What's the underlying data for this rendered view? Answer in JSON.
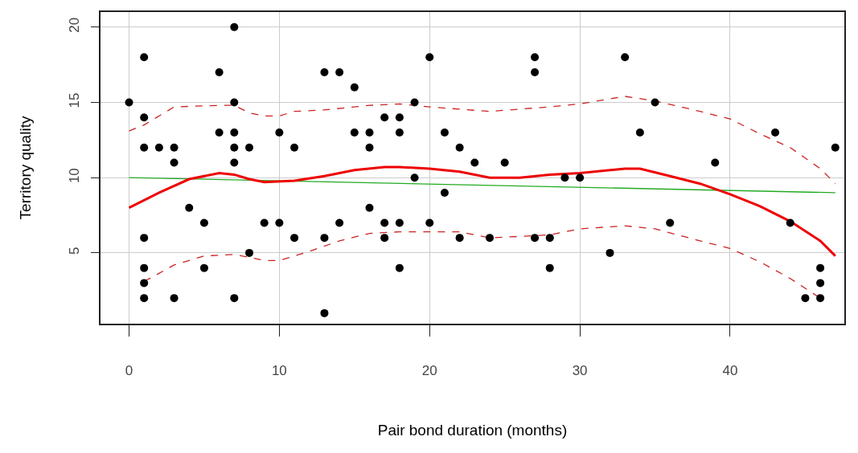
{
  "chart_data": {
    "type": "scatter",
    "xlabel": "Pair bond duration (months)",
    "ylabel": "Territory quality",
    "xlim": [
      -1.9,
      47.6
    ],
    "ylim": [
      0.3,
      21.0
    ],
    "xticks": [
      0,
      10,
      20,
      30,
      40
    ],
    "yticks": [
      5,
      10,
      15,
      20
    ],
    "grid": true,
    "series": [
      {
        "marker": "circle",
        "color": "#000000",
        "x": [
          0,
          1,
          1,
          1,
          1,
          1,
          1,
          1,
          2,
          3,
          3,
          3,
          4,
          5,
          5,
          6,
          6,
          7,
          7,
          7,
          7,
          7,
          7,
          8,
          8,
          9,
          10,
          10,
          11,
          11,
          13,
          13,
          13,
          14,
          14,
          15,
          15,
          16,
          16,
          16,
          17,
          17,
          17,
          18,
          18,
          18,
          18,
          19,
          19,
          20,
          20,
          21,
          21,
          22,
          22,
          23,
          24,
          25,
          27,
          27,
          27,
          28,
          28,
          29,
          30,
          32,
          33,
          34,
          35,
          36,
          39,
          43,
          44,
          45,
          46,
          46,
          46,
          47
        ],
        "values": [
          15,
          18,
          14,
          12,
          6,
          4,
          3,
          2,
          12,
          12,
          11,
          2,
          8,
          7,
          4,
          17,
          13,
          20,
          15,
          13,
          12,
          11,
          2,
          12,
          5,
          7,
          13,
          7,
          12,
          6,
          17,
          6,
          1,
          17,
          7,
          16,
          13,
          13,
          12,
          8,
          14,
          7,
          6,
          14,
          13,
          7,
          4,
          15,
          10,
          18,
          7,
          13,
          9,
          12,
          6,
          11,
          6,
          11,
          18,
          17,
          6,
          6,
          4,
          10,
          10,
          5,
          18,
          13,
          15,
          7,
          11,
          13,
          7,
          2,
          4,
          3,
          2,
          12
        ]
      },
      {
        "type": "line",
        "line_style": "solid",
        "color": "#22aa22",
        "x": [
          0,
          47
        ],
        "values": [
          10.0,
          9.0
        ]
      },
      {
        "type": "line",
        "line_style": "solid",
        "color": "#ee0000",
        "x": [
          0,
          2,
          4,
          6,
          7,
          8,
          9,
          11,
          13,
          15,
          17,
          18,
          20,
          22,
          24,
          26,
          28,
          30,
          33,
          34,
          36,
          38,
          40,
          42,
          44,
          46,
          47
        ],
        "values": [
          8.0,
          9.0,
          9.9,
          10.3,
          10.2,
          9.9,
          9.7,
          9.8,
          10.1,
          10.5,
          10.7,
          10.7,
          10.6,
          10.4,
          10.0,
          10.0,
          10.2,
          10.3,
          10.6,
          10.6,
          10.1,
          9.6,
          8.9,
          8.1,
          7.1,
          5.8,
          4.8
        ]
      },
      {
        "type": "line",
        "line_style": "dashed",
        "color": "#cc2222",
        "x": [
          0,
          1,
          3,
          6,
          7,
          8,
          9,
          10,
          11,
          13,
          16,
          18,
          20,
          24,
          28,
          30,
          33,
          35,
          38,
          40,
          42,
          44,
          46,
          47
        ],
        "values": [
          13.1,
          13.5,
          14.7,
          14.8,
          14.8,
          14.3,
          14.1,
          14.1,
          14.4,
          14.5,
          14.8,
          14.9,
          14.7,
          14.4,
          14.7,
          14.9,
          15.4,
          15.1,
          14.4,
          13.9,
          12.9,
          12.0,
          10.6,
          9.6
        ]
      },
      {
        "type": "line",
        "line_style": "dashed",
        "color": "#cc2222",
        "x": [
          1,
          3,
          5,
          7,
          9,
          10,
          12,
          14,
          16,
          18,
          22,
          24,
          28,
          30,
          33,
          35,
          38,
          40,
          42,
          44,
          46
        ],
        "values": [
          3.1,
          4.2,
          4.8,
          4.9,
          4.5,
          4.5,
          5.1,
          5.8,
          6.3,
          6.4,
          6.4,
          6.0,
          6.2,
          6.6,
          6.8,
          6.6,
          5.8,
          5.3,
          4.4,
          3.3,
          2.0
        ]
      }
    ]
  }
}
